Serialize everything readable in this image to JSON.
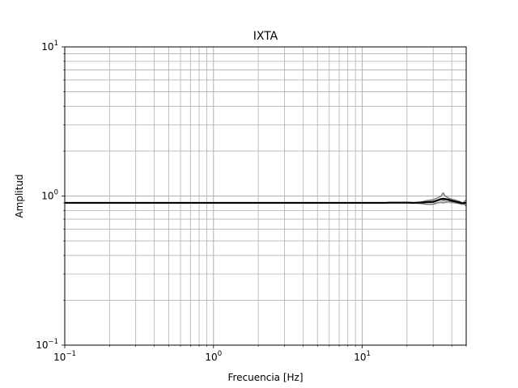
{
  "chart_data": {
    "type": "line",
    "title": "IXTA",
    "xlabel": "Frecuencia [Hz]",
    "ylabel": "Amplitud",
    "xscale": "log",
    "yscale": "log",
    "xlim": [
      0.1,
      50
    ],
    "ylim": [
      0.1,
      10
    ],
    "grid": "major-and-minor",
    "x_ticks": [
      {
        "value": 0.1,
        "base": "10",
        "exp": "−1"
      },
      {
        "value": 1,
        "base": "10",
        "exp": "0"
      },
      {
        "value": 10,
        "base": "10",
        "exp": "1"
      }
    ],
    "y_ticks": [
      {
        "value": 0.1,
        "base": "10",
        "exp": "−1"
      },
      {
        "value": 1,
        "base": "10",
        "exp": "0"
      },
      {
        "value": 10,
        "base": "10",
        "exp": "1"
      }
    ],
    "series": [
      {
        "color": "#808080",
        "style": "individual-traces",
        "traces": [
          {
            "x": [
              0.1,
              14.5,
              15,
              20,
              22,
              25,
              27,
              30,
              32,
              34,
              35,
              36,
              38,
              40,
              42,
              45,
              47,
              50
            ],
            "y": [
              0.9,
              0.9,
              0.905,
              0.905,
              0.9,
              0.91,
              0.93,
              0.945,
              0.97,
              1.0,
              1.05,
              1.0,
              0.97,
              0.95,
              0.94,
              0.92,
              0.9,
              0.86
            ]
          },
          {
            "x": [
              0.1,
              14.5,
              15,
              20,
              22,
              25,
              27,
              30,
              32,
              34,
              35,
              36,
              38,
              40,
              42,
              45,
              47,
              50
            ],
            "y": [
              0.9,
              0.9,
              0.9,
              0.9,
              0.895,
              0.9,
              0.905,
              0.91,
              0.93,
              0.95,
              0.93,
              0.94,
              0.95,
              0.93,
              0.92,
              0.9,
              0.89,
              0.94
            ]
          },
          {
            "x": [
              0.1,
              14.5,
              15,
              20,
              22,
              25,
              27,
              30,
              32,
              34,
              35,
              36,
              38,
              40,
              42,
              45,
              47,
              50
            ],
            "y": [
              0.9,
              0.9,
              0.9,
              0.9,
              0.9,
              0.89,
              0.88,
              0.88,
              0.9,
              0.91,
              0.9,
              0.91,
              0.92,
              0.91,
              0.9,
              0.89,
              0.88,
              0.9
            ]
          }
        ]
      },
      {
        "color": "#000000",
        "style": "mean",
        "x": [
          0.1,
          14.5,
          15,
          20,
          22,
          25,
          27,
          30,
          32,
          34,
          35,
          36,
          38,
          40,
          42,
          45,
          47,
          50
        ],
        "y": [
          0.9,
          0.9,
          0.903,
          0.903,
          0.9,
          0.905,
          0.91,
          0.915,
          0.935,
          0.955,
          0.96,
          0.955,
          0.945,
          0.93,
          0.92,
          0.905,
          0.895,
          0.9
        ]
      }
    ]
  }
}
